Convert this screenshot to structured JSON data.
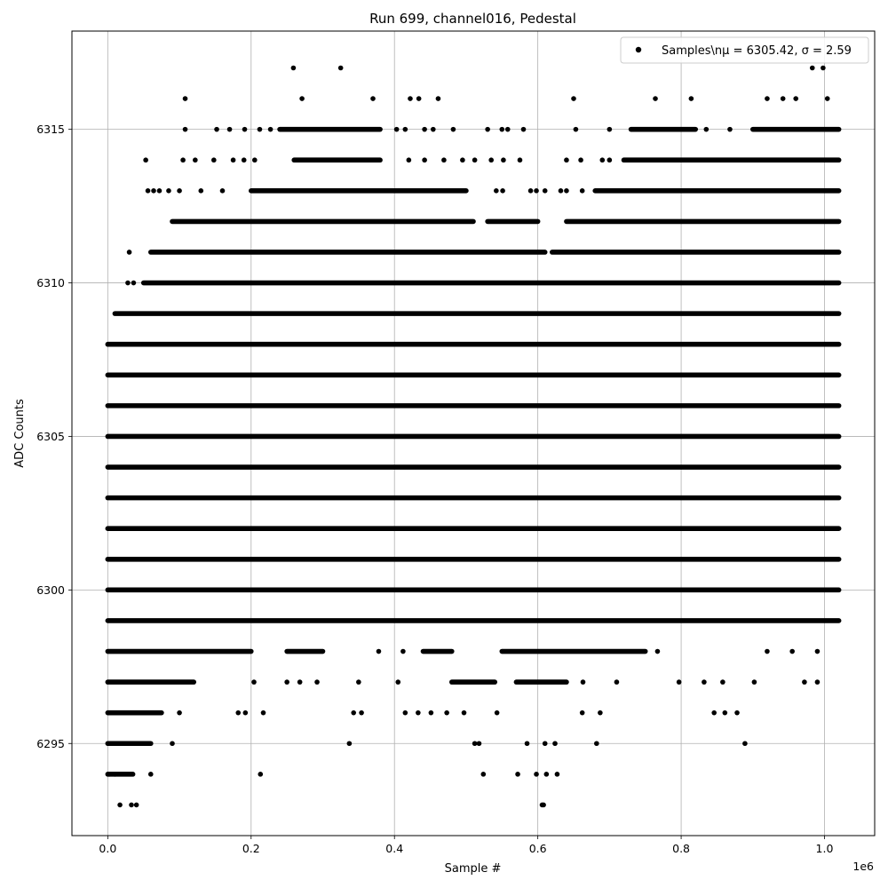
{
  "chart_data": {
    "type": "scatter",
    "title": "Run 699, channel016, Pedestal",
    "xlabel": "Sample #",
    "ylabel": "ADC Counts",
    "x_offset_label": "1e6",
    "xlim": [
      -0.05,
      1.07
    ],
    "ylim": [
      6292.0,
      6318.2
    ],
    "x_scale_factor": 1000000,
    "x_ticks": [
      0.0,
      0.2,
      0.4,
      0.6,
      0.8,
      1.0
    ],
    "x_tick_labels": [
      "0.0",
      "0.2",
      "0.4",
      "0.6",
      "0.8",
      "1.0"
    ],
    "y_ticks": [
      6295,
      6300,
      6305,
      6310,
      6315
    ],
    "y_tick_labels": [
      "6295",
      "6300",
      "6305",
      "6310",
      "6315"
    ],
    "grid": true,
    "legend_position": "top-right",
    "marker_color": "#000000",
    "series": [
      {
        "name": "Samples\\n$\\mu$ = 6305.42, $\\sigma$ = 2.59",
        "legend_label": "Samples\\nμ = 6305.42, σ = 2.59",
        "dense_bands": [
          {
            "y": 6294,
            "segments": [
              [
                0.0,
                0.035
              ]
            ]
          },
          {
            "y": 6295,
            "segments": [
              [
                0.0,
                0.06
              ]
            ]
          },
          {
            "y": 6296,
            "segments": [
              [
                0.0,
                0.075
              ]
            ]
          },
          {
            "y": 6297,
            "segments": [
              [
                0.0,
                0.12
              ],
              [
                0.48,
                0.54
              ],
              [
                0.57,
                0.64
              ]
            ]
          },
          {
            "y": 6298,
            "segments": [
              [
                0.0,
                0.2
              ],
              [
                0.25,
                0.3
              ],
              [
                0.44,
                0.48
              ],
              [
                0.55,
                0.75
              ]
            ]
          },
          {
            "y": 6299,
            "segments": [
              [
                0.0,
                1.02
              ]
            ]
          },
          {
            "y": 6300,
            "segments": [
              [
                0.0,
                1.02
              ]
            ]
          },
          {
            "y": 6301,
            "segments": [
              [
                0.0,
                1.02
              ]
            ]
          },
          {
            "y": 6302,
            "segments": [
              [
                0.0,
                1.02
              ]
            ]
          },
          {
            "y": 6303,
            "segments": [
              [
                0.0,
                1.02
              ]
            ]
          },
          {
            "y": 6304,
            "segments": [
              [
                0.0,
                1.02
              ]
            ]
          },
          {
            "y": 6305,
            "segments": [
              [
                0.0,
                1.02
              ]
            ]
          },
          {
            "y": 6306,
            "segments": [
              [
                0.0,
                1.02
              ]
            ]
          },
          {
            "y": 6307,
            "segments": [
              [
                0.0,
                1.02
              ]
            ]
          },
          {
            "y": 6308,
            "segments": [
              [
                0.0,
                1.02
              ]
            ]
          },
          {
            "y": 6309,
            "segments": [
              [
                0.01,
                1.02
              ]
            ]
          },
          {
            "y": 6310,
            "segments": [
              [
                0.05,
                1.02
              ]
            ]
          },
          {
            "y": 6311,
            "segments": [
              [
                0.06,
                0.61
              ],
              [
                0.62,
                1.02
              ]
            ]
          },
          {
            "y": 6312,
            "segments": [
              [
                0.09,
                0.51
              ],
              [
                0.53,
                0.6
              ],
              [
                0.64,
                1.02
              ]
            ]
          },
          {
            "y": 6313,
            "segments": [
              [
                0.2,
                0.5
              ],
              [
                0.68,
                1.02
              ]
            ]
          },
          {
            "y": 6314,
            "segments": [
              [
                0.26,
                0.38
              ],
              [
                0.72,
                1.02
              ]
            ]
          },
          {
            "y": 6315,
            "segments": [
              [
                0.24,
                0.38
              ],
              [
                0.73,
                0.82
              ],
              [
                0.9,
                1.02
              ]
            ]
          }
        ],
        "sparse_points": [
          [
            0.017,
            6293
          ],
          [
            0.033,
            6293
          ],
          [
            0.04,
            6293
          ],
          [
            0.606,
            6293
          ],
          [
            0.608,
            6293
          ],
          [
            0.002,
            6294
          ],
          [
            0.01,
            6294
          ],
          [
            0.06,
            6294
          ],
          [
            0.213,
            6294
          ],
          [
            0.524,
            6294
          ],
          [
            0.572,
            6294
          ],
          [
            0.598,
            6294
          ],
          [
            0.612,
            6294
          ],
          [
            0.627,
            6294
          ],
          [
            0.09,
            6295
          ],
          [
            0.337,
            6295
          ],
          [
            0.512,
            6295
          ],
          [
            0.518,
            6295
          ],
          [
            0.585,
            6295
          ],
          [
            0.61,
            6295
          ],
          [
            0.624,
            6295
          ],
          [
            0.682,
            6295
          ],
          [
            0.889,
            6295
          ],
          [
            0.1,
            6296
          ],
          [
            0.182,
            6296
          ],
          [
            0.192,
            6296
          ],
          [
            0.217,
            6296
          ],
          [
            0.343,
            6296
          ],
          [
            0.354,
            6296
          ],
          [
            0.415,
            6296
          ],
          [
            0.433,
            6296
          ],
          [
            0.451,
            6296
          ],
          [
            0.473,
            6296
          ],
          [
            0.497,
            6296
          ],
          [
            0.543,
            6296
          ],
          [
            0.662,
            6296
          ],
          [
            0.687,
            6296
          ],
          [
            0.846,
            6296
          ],
          [
            0.861,
            6296
          ],
          [
            0.878,
            6296
          ],
          [
            0.204,
            6297
          ],
          [
            0.25,
            6297
          ],
          [
            0.268,
            6297
          ],
          [
            0.292,
            6297
          ],
          [
            0.35,
            6297
          ],
          [
            0.405,
            6297
          ],
          [
            0.663,
            6297
          ],
          [
            0.71,
            6297
          ],
          [
            0.797,
            6297
          ],
          [
            0.832,
            6297
          ],
          [
            0.858,
            6297
          ],
          [
            0.902,
            6297
          ],
          [
            0.972,
            6297
          ],
          [
            0.99,
            6297
          ],
          [
            0.378,
            6298
          ],
          [
            0.412,
            6298
          ],
          [
            0.767,
            6298
          ],
          [
            0.92,
            6298
          ],
          [
            0.955,
            6298
          ],
          [
            0.99,
            6298
          ],
          [
            0.028,
            6310
          ],
          [
            0.036,
            6310
          ],
          [
            0.03,
            6311
          ],
          [
            0.056,
            6313
          ],
          [
            0.064,
            6313
          ],
          [
            0.072,
            6313
          ],
          [
            0.085,
            6313
          ],
          [
            0.1,
            6313
          ],
          [
            0.13,
            6313
          ],
          [
            0.16,
            6313
          ],
          [
            0.542,
            6313
          ],
          [
            0.551,
            6313
          ],
          [
            0.59,
            6313
          ],
          [
            0.598,
            6313
          ],
          [
            0.61,
            6313
          ],
          [
            0.632,
            6313
          ],
          [
            0.64,
            6313
          ],
          [
            0.662,
            6313
          ],
          [
            0.053,
            6314
          ],
          [
            0.105,
            6314
          ],
          [
            0.122,
            6314
          ],
          [
            0.148,
            6314
          ],
          [
            0.175,
            6314
          ],
          [
            0.19,
            6314
          ],
          [
            0.205,
            6314
          ],
          [
            0.42,
            6314
          ],
          [
            0.442,
            6314
          ],
          [
            0.469,
            6314
          ],
          [
            0.495,
            6314
          ],
          [
            0.512,
            6314
          ],
          [
            0.535,
            6314
          ],
          [
            0.552,
            6314
          ],
          [
            0.575,
            6314
          ],
          [
            0.64,
            6314
          ],
          [
            0.66,
            6314
          ],
          [
            0.69,
            6314
          ],
          [
            0.7,
            6314
          ],
          [
            0.108,
            6315
          ],
          [
            0.152,
            6315
          ],
          [
            0.17,
            6315
          ],
          [
            0.191,
            6315
          ],
          [
            0.212,
            6315
          ],
          [
            0.227,
            6315
          ],
          [
            0.403,
            6315
          ],
          [
            0.415,
            6315
          ],
          [
            0.442,
            6315
          ],
          [
            0.454,
            6315
          ],
          [
            0.482,
            6315
          ],
          [
            0.53,
            6315
          ],
          [
            0.55,
            6315
          ],
          [
            0.558,
            6315
          ],
          [
            0.58,
            6315
          ],
          [
            0.653,
            6315
          ],
          [
            0.7,
            6315
          ],
          [
            0.835,
            6315
          ],
          [
            0.868,
            6315
          ],
          [
            0.108,
            6316
          ],
          [
            0.271,
            6316
          ],
          [
            0.37,
            6316
          ],
          [
            0.422,
            6316
          ],
          [
            0.434,
            6316
          ],
          [
            0.461,
            6316
          ],
          [
            0.65,
            6316
          ],
          [
            0.764,
            6316
          ],
          [
            0.814,
            6316
          ],
          [
            0.92,
            6316
          ],
          [
            0.942,
            6316
          ],
          [
            0.96,
            6316
          ],
          [
            1.004,
            6316
          ],
          [
            0.259,
            6317
          ],
          [
            0.325,
            6317
          ],
          [
            0.983,
            6317
          ],
          [
            0.998,
            6317
          ]
        ]
      }
    ]
  }
}
